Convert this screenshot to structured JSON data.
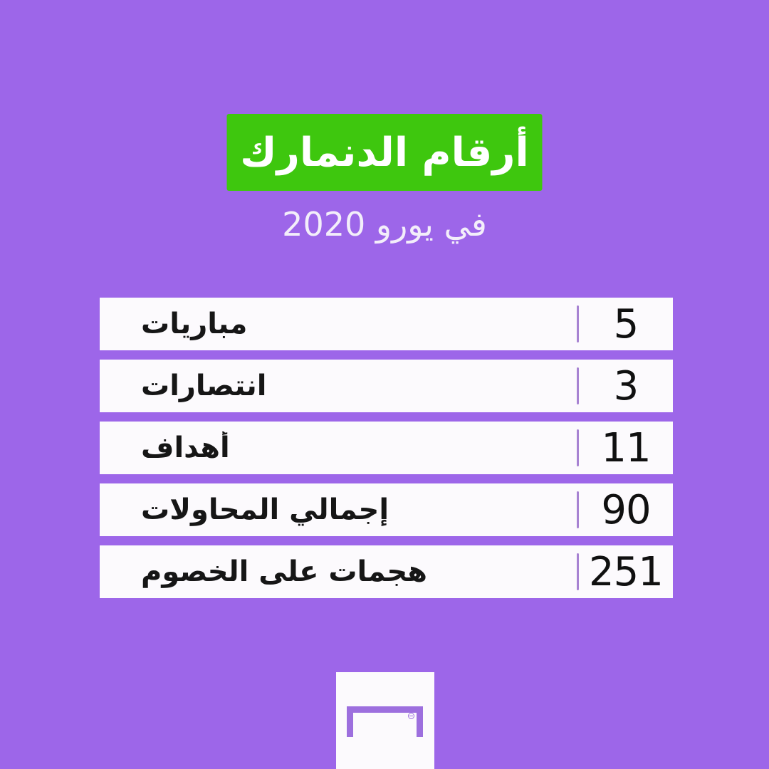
{
  "colors": {
    "background": "#9D66E9",
    "banner_green": "#3EC70E",
    "row_background": "#FCFAFD",
    "row_text": "#161616",
    "separator_purple": "#A782D2",
    "title_text": "#FFFFFF",
    "subtitle_text": "#F3EEFA",
    "logo_purple": "#9D6FDE"
  },
  "header": {
    "title": "أرقام الدنمارك",
    "subtitle": "في يورو 2020"
  },
  "stats": {
    "rows": [
      {
        "label": "مباريات",
        "value": "5"
      },
      {
        "label": "انتصارات",
        "value": "3"
      },
      {
        "label": "أهداف",
        "value": "11"
      },
      {
        "label": "إجمالي المحاولات",
        "value": "90"
      },
      {
        "label": "هجمات على الخصوم",
        "value": "251"
      }
    ]
  },
  "footer": {
    "logo": "goal-logo"
  },
  "chart_data": {
    "type": "table",
    "title": "أرقام الدنمارك",
    "subtitle": "في يورو 2020",
    "categories": [
      "مباريات",
      "انتصارات",
      "أهداف",
      "إجمالي المحاولات",
      "هجمات على الخصوم"
    ],
    "values": [
      5,
      3,
      11,
      90,
      251
    ],
    "legend": "none",
    "layout": "stat rows: label left, purple divider, value right"
  }
}
